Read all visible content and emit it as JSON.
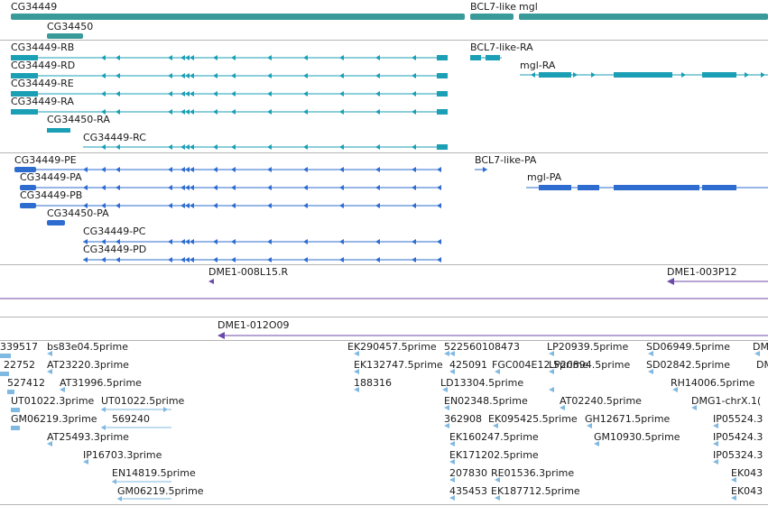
{
  "colors": {
    "gene": "#3a9a9a",
    "mrna": "#1a9fb5",
    "protein": "#2e6ccf",
    "clone": "#6b4aa8",
    "est": "#7fb8e0",
    "divider": "#b4b4b4"
  },
  "tracks": {
    "gene": {
      "cg34449": "CG34449",
      "cg34450": "CG34450",
      "bcl7": "BCL7-like",
      "mgl": "mgl"
    },
    "mrna": {
      "rb": "CG34449-RB",
      "rd": "CG34449-RD",
      "re": "CG34449-RE",
      "ra": "CG34449-RA",
      "cg34450_ra": "CG34450-RA",
      "rc": "CG34449-RC",
      "bcl7_ra": "BCL7-like-RA",
      "mgl_ra": "mgl-RA"
    },
    "protein": {
      "pe": "CG34449-PE",
      "pa": "CG34449-PA",
      "pb": "CG34449-PB",
      "cg34450_pa": "CG34450-PA",
      "pc": "CG34449-PC",
      "pd": "CG34449-PD",
      "bcl7_pa": "BCL7-like-PA",
      "mgl_pa": "mgl-PA"
    },
    "clone": {
      "c1": "DME1-008L15.R",
      "c2": "DME1-003P12",
      "c3": "DME1-012O09"
    },
    "est": {
      "e1": "339517",
      "e2": "bs83e04.5prime",
      "e3": "EK290457.5prime",
      "e4": "522560108473",
      "e5": "LP20939.5prime",
      "e6": "SD06949.5prime",
      "e7": "DM",
      "e8": "22752",
      "e9": "AT23220.3prime",
      "e10": "EK132747.5prime",
      "e11": "425091",
      "e12": "FGC004E12.5prime",
      "e13": "LP20894.5prime",
      "e14": "SD02842.5prime",
      "e15": "DM",
      "e16": "527412",
      "e17": "AT31996.5prime",
      "e18": "188316",
      "e19": "LD13304.5prime",
      "e20": "RH14006.5prime",
      "e21": "UT01022.3prime",
      "e22": "UT01022.5prime",
      "e23": "EN02348.5prime",
      "e24": "AT02240.5prime",
      "e25": "DMG1-chrX.1(",
      "e26": "569240",
      "e27": "GM06219.3prime",
      "e28": "362908",
      "e29": "EK095425.5prime",
      "e30": "GH12671.5prime",
      "e31": "IP05524.3",
      "e32": "AT25493.3prime",
      "e33": "EK160247.5prime",
      "e34": "GM10930.5prime",
      "e35": "IP05424.3",
      "e36": "EK171202.5prime",
      "e37": "IP05324.3",
      "e38": "IP16703.3prime",
      "e39": "EN14819.5prime",
      "e40": "207830",
      "e41": "RE01536.3prime",
      "e42": "EK043",
      "e43": "GM06219.5prime",
      "e44": "435453",
      "e45": "EK187712.5prime",
      "e46": "EK043"
    }
  }
}
